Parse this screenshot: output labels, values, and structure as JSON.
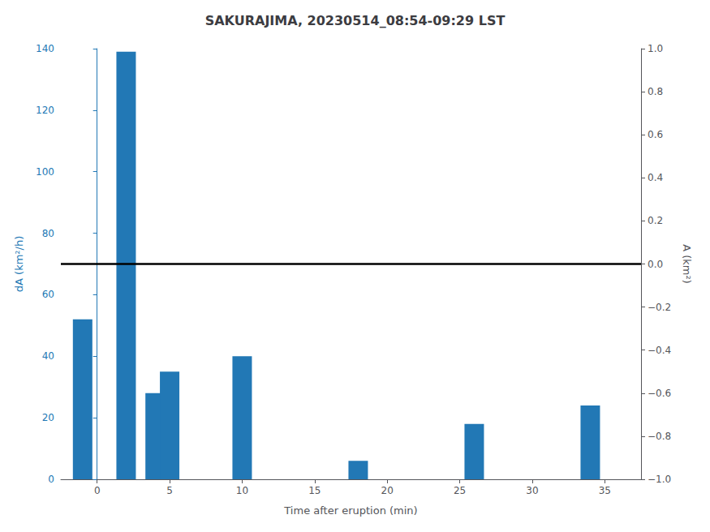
{
  "chart_data": {
    "type": "bar",
    "title": "SAKURAJIMA, 20230514_08:54-09:29 LST",
    "xlabel": "Time after eruption (min)",
    "ylabel": "dA (km²/h)",
    "y2label": "A (km²)",
    "x": [
      -1,
      2,
      4,
      5,
      7,
      10,
      18,
      26,
      34
    ],
    "values": [
      52,
      139,
      28,
      35,
      0,
      40,
      6,
      18,
      24
    ],
    "color": "#2278b5",
    "xlim": [
      -2.5,
      37.5
    ],
    "xticks": [
      0,
      5,
      10,
      15,
      20,
      25,
      30,
      35
    ],
    "ylim": [
      0,
      140
    ],
    "yticks": [
      0,
      20,
      40,
      60,
      80,
      100,
      120,
      140
    ],
    "y2lim": [
      -1,
      1
    ],
    "y2ticks": [
      {
        "value": -1,
        "label": "−1.0"
      },
      {
        "value": -0.8,
        "label": "−0.8"
      },
      {
        "value": -0.6,
        "label": "−0.6"
      },
      {
        "value": -0.4,
        "label": "−0.4"
      },
      {
        "value": -0.2,
        "label": "−0.2"
      },
      {
        "value": 0,
        "label": "0.0"
      },
      {
        "value": 0.2,
        "label": "0.2"
      },
      {
        "value": 0.4,
        "label": "0.4"
      },
      {
        "value": 0.6,
        "label": "0.6"
      },
      {
        "value": 0.8,
        "label": "0.8"
      },
      {
        "value": 1,
        "label": "1.0"
      }
    ],
    "hline": {
      "y": 70,
      "color": "black"
    },
    "grid": false
  }
}
